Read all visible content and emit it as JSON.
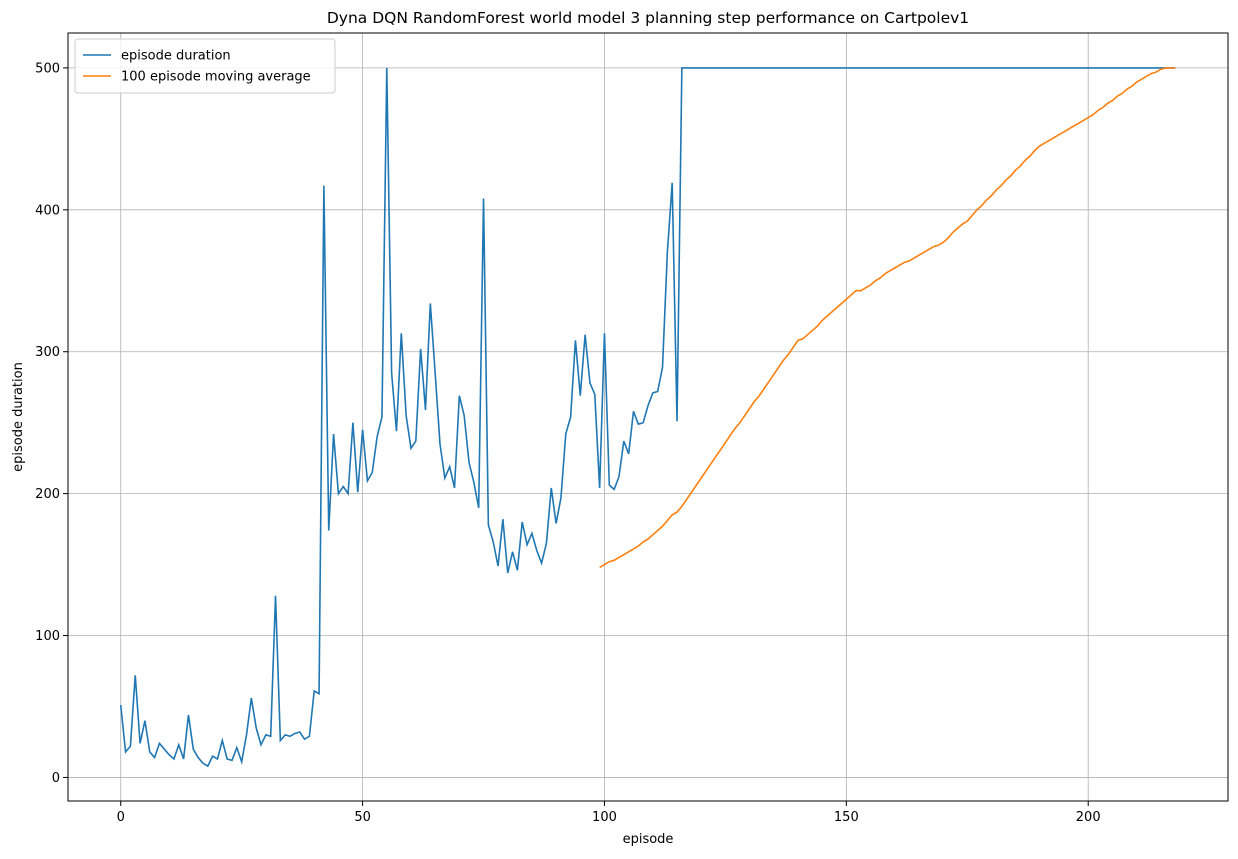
{
  "chart_data": {
    "type": "line",
    "title": "Dyna DQN RandomForest world model 3 planning step performance on Cartpolev1",
    "xlabel": "episode",
    "ylabel": "episode duration",
    "x": [
      0,
      1,
      2,
      3,
      4,
      5,
      6,
      7,
      8,
      9,
      10,
      11,
      12,
      13,
      14,
      15,
      16,
      17,
      18,
      19,
      20,
      21,
      22,
      23,
      24,
      25,
      26,
      27,
      28,
      29,
      30,
      31,
      32,
      33,
      34,
      35,
      36,
      37,
      38,
      39,
      40,
      41,
      42,
      43,
      44,
      45,
      46,
      47,
      48,
      49,
      50,
      51,
      52,
      53,
      54,
      55,
      56,
      57,
      58,
      59,
      60,
      61,
      62,
      63,
      64,
      65,
      66,
      67,
      68,
      69,
      70,
      71,
      72,
      73,
      74,
      75,
      76,
      77,
      78,
      79,
      80,
      81,
      82,
      83,
      84,
      85,
      86,
      87,
      88,
      89,
      90,
      91,
      92,
      93,
      94,
      95,
      96,
      97,
      98,
      99,
      100,
      101,
      102,
      103,
      104,
      105,
      106,
      107,
      108,
      109,
      110,
      111,
      112,
      113,
      114,
      115,
      116,
      117,
      118,
      119,
      120,
      121,
      122,
      123,
      124,
      125,
      126,
      127,
      128,
      129,
      130,
      131,
      132,
      133,
      134,
      135,
      136,
      137,
      138,
      139,
      140,
      141,
      142,
      143,
      144,
      145,
      146,
      147,
      148,
      149,
      150,
      151,
      152,
      153,
      154,
      155,
      156,
      157,
      158,
      159,
      160,
      161,
      162,
      163,
      164,
      165,
      166,
      167,
      168,
      169,
      170,
      171,
      172,
      173,
      174,
      175,
      176,
      177,
      178,
      179,
      180,
      181,
      182,
      183,
      184,
      185,
      186,
      187,
      188,
      189,
      190,
      191,
      192,
      193,
      194,
      195,
      196,
      197,
      198,
      199,
      200,
      201,
      202,
      203,
      204,
      205,
      206,
      207,
      208,
      209,
      210,
      211,
      212,
      213,
      214,
      215,
      216,
      217,
      218
    ],
    "series": [
      {
        "name": "episode duration",
        "color": "#1f77b4",
        "values": [
          51,
          18,
          22,
          72,
          24,
          40,
          18,
          14,
          24,
          20,
          16,
          13,
          23,
          13,
          44,
          20,
          14,
          10,
          8,
          15,
          13,
          26,
          13,
          12,
          21,
          11,
          30,
          56,
          35,
          23,
          30,
          29,
          128,
          26,
          30,
          29,
          31,
          32,
          27,
          29,
          61,
          59,
          417,
          174,
          242,
          200,
          205,
          200,
          250,
          201,
          245,
          209,
          215,
          240,
          254,
          500,
          285,
          244,
          313,
          255,
          232,
          237,
          302,
          259,
          334,
          285,
          235,
          211,
          219,
          204,
          269,
          255,
          222,
          208,
          190,
          408,
          178,
          166,
          149,
          182,
          144,
          159,
          146,
          180,
          164,
          172,
          160,
          151,
          165,
          204,
          179,
          197,
          242,
          254,
          308,
          269,
          312,
          278,
          270,
          204,
          313,
          206,
          203,
          212,
          237,
          228,
          258,
          249,
          250,
          262,
          271,
          272,
          289,
          370,
          419,
          251,
          500,
          500,
          500,
          500,
          500,
          500,
          500,
          500,
          500,
          500,
          500,
          500,
          500,
          500,
          500,
          500,
          500,
          500,
          500,
          500,
          500,
          500,
          500,
          500,
          500,
          500,
          500,
          500,
          500,
          500,
          500,
          500,
          500,
          500,
          500,
          500,
          500,
          500,
          500,
          500,
          500,
          500,
          500,
          500,
          500,
          500,
          500,
          500,
          500,
          500,
          500,
          500,
          500,
          500,
          500,
          500,
          500,
          500,
          500,
          500,
          500,
          500,
          500,
          500,
          500,
          500,
          500,
          500,
          500,
          500,
          500,
          500,
          500,
          500,
          500,
          500,
          500,
          500,
          500,
          500,
          500,
          500,
          500,
          500,
          500,
          500,
          500,
          500,
          500,
          500,
          500,
          500,
          500,
          500,
          500,
          500,
          500,
          500,
          500,
          500,
          500,
          500,
          500
        ]
      },
      {
        "name": "100 episode moving average",
        "color": "#ff7f0e",
        "values": [
          null,
          null,
          null,
          null,
          null,
          null,
          null,
          null,
          null,
          null,
          null,
          null,
          null,
          null,
          null,
          null,
          null,
          null,
          null,
          null,
          null,
          null,
          null,
          null,
          null,
          null,
          null,
          null,
          null,
          null,
          null,
          null,
          null,
          null,
          null,
          null,
          null,
          null,
          null,
          null,
          null,
          null,
          null,
          null,
          null,
          null,
          null,
          null,
          null,
          null,
          null,
          null,
          null,
          null,
          null,
          null,
          null,
          null,
          null,
          null,
          null,
          null,
          null,
          null,
          null,
          null,
          null,
          null,
          null,
          null,
          null,
          null,
          null,
          null,
          null,
          null,
          null,
          null,
          null,
          null,
          null,
          null,
          null,
          null,
          null,
          null,
          null,
          null,
          null,
          null,
          null,
          null,
          null,
          null,
          null,
          null,
          null,
          null,
          null,
          148,
          150,
          152,
          153,
          155,
          157,
          159,
          161,
          163,
          166,
          168,
          171,
          174,
          177,
          181,
          185,
          187,
          191,
          196,
          201,
          206,
          211,
          216,
          221,
          226,
          231,
          236,
          241,
          246,
          250,
          255,
          260,
          265,
          269,
          274,
          279,
          284,
          289,
          294,
          298,
          303,
          308,
          309,
          312,
          315,
          318,
          322,
          325,
          328,
          331,
          334,
          337,
          340,
          343,
          343,
          345,
          347,
          350,
          352,
          355,
          357,
          359,
          361,
          363,
          364,
          366,
          368,
          370,
          372,
          374,
          375,
          377,
          380,
          384,
          387,
          390,
          392,
          396,
          400,
          403,
          407,
          410,
          414,
          417,
          421,
          424,
          428,
          431,
          435,
          438,
          442,
          445,
          447,
          449,
          451,
          453,
          455,
          457,
          459,
          461,
          463,
          465,
          467,
          470,
          472,
          475,
          477,
          480,
          482,
          485,
          487,
          490,
          492,
          494,
          496,
          497,
          499,
          500,
          500,
          500
        ]
      }
    ],
    "xlim": [
      -10.9,
      228.9
    ],
    "ylim": [
      -16.6,
      524.6
    ],
    "xticks": [
      0,
      50,
      100,
      150,
      200
    ],
    "yticks": [
      0,
      100,
      200,
      300,
      400,
      500
    ],
    "grid": true,
    "legend": "upper-left"
  }
}
